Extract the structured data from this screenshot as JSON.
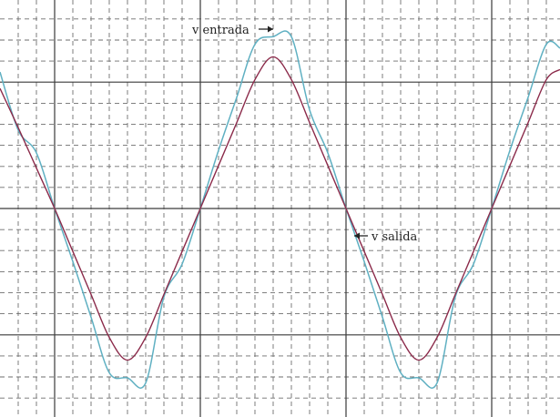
{
  "chart_data": {
    "type": "line",
    "title": "",
    "xlabel": "",
    "ylabel": "",
    "xlim": [
      0,
      615
    ],
    "ylim": [
      -1.65,
      1.65
    ],
    "grid": {
      "major": true,
      "minor_dashed": true,
      "major_x": [
        60,
        220,
        380,
        540
      ],
      "major_y": [
        -1,
        0,
        1
      ],
      "minor_x": [
        20,
        40,
        80,
        100,
        120,
        140,
        160,
        180,
        200,
        240,
        260,
        280,
        300,
        320,
        340,
        360,
        400,
        420,
        440,
        460,
        480,
        500,
        520,
        560,
        580,
        600
      ],
      "minor_y": [
        -1.5,
        -1.333,
        -1.167,
        -0.833,
        -0.667,
        -0.5,
        -0.333,
        -0.167,
        0.167,
        0.333,
        0.5,
        0.667,
        0.833,
        1.167,
        1.333,
        1.5
      ]
    },
    "series": [
      {
        "name": "v salida",
        "color": "#8b2a4a",
        "style": "smooth sine",
        "points": [
          [
            0,
            0.95
          ],
          [
            20,
            0.64
          ],
          [
            40,
            0.32
          ],
          [
            60,
            0.0
          ],
          [
            80,
            -0.34
          ],
          [
            100,
            -0.68
          ],
          [
            120,
            -1.02
          ],
          [
            140,
            -1.2
          ],
          [
            160,
            -1.02
          ],
          [
            180,
            -0.68
          ],
          [
            200,
            -0.34
          ],
          [
            220,
            0.0
          ],
          [
            240,
            0.34
          ],
          [
            260,
            0.68
          ],
          [
            280,
            1.02
          ],
          [
            300,
            1.2
          ],
          [
            320,
            1.02
          ],
          [
            340,
            0.68
          ],
          [
            360,
            0.34
          ],
          [
            380,
            0.0
          ],
          [
            400,
            -0.34
          ],
          [
            420,
            -0.68
          ],
          [
            440,
            -1.02
          ],
          [
            460,
            -1.2
          ],
          [
            480,
            -1.02
          ],
          [
            500,
            -0.68
          ],
          [
            520,
            -0.34
          ],
          [
            540,
            0.0
          ],
          [
            560,
            0.34
          ],
          [
            580,
            0.68
          ],
          [
            600,
            1.02
          ],
          [
            615,
            1.1
          ]
        ]
      },
      {
        "name": "v entrada",
        "color": "#5fb0c2",
        "style": "sine with harmonic ripple",
        "points": [
          [
            0,
            1.08
          ],
          [
            20,
            0.62
          ],
          [
            40,
            0.44
          ],
          [
            60,
            0.0
          ],
          [
            80,
            -0.42
          ],
          [
            100,
            -0.86
          ],
          [
            120,
            -1.3
          ],
          [
            140,
            -1.34
          ],
          [
            160,
            -1.38
          ],
          [
            180,
            -0.7
          ],
          [
            200,
            -0.44
          ],
          [
            220,
            0.0
          ],
          [
            240,
            0.46
          ],
          [
            260,
            0.88
          ],
          [
            280,
            1.3
          ],
          [
            300,
            1.36
          ],
          [
            320,
            1.36
          ],
          [
            340,
            0.78
          ],
          [
            360,
            0.44
          ],
          [
            380,
            0.0
          ],
          [
            400,
            -0.42
          ],
          [
            420,
            -0.86
          ],
          [
            440,
            -1.3
          ],
          [
            460,
            -1.34
          ],
          [
            480,
            -1.38
          ],
          [
            500,
            -0.7
          ],
          [
            520,
            -0.44
          ],
          [
            540,
            0.0
          ],
          [
            560,
            0.46
          ],
          [
            580,
            0.88
          ],
          [
            600,
            1.3
          ],
          [
            615,
            1.27
          ]
        ]
      }
    ],
    "annotations": [
      {
        "text": "v entrada",
        "arrow": "right",
        "at": [
          284,
          1.32
        ]
      },
      {
        "text": "v salida",
        "arrow": "left",
        "at": [
          388,
          -0.18
        ]
      }
    ]
  }
}
